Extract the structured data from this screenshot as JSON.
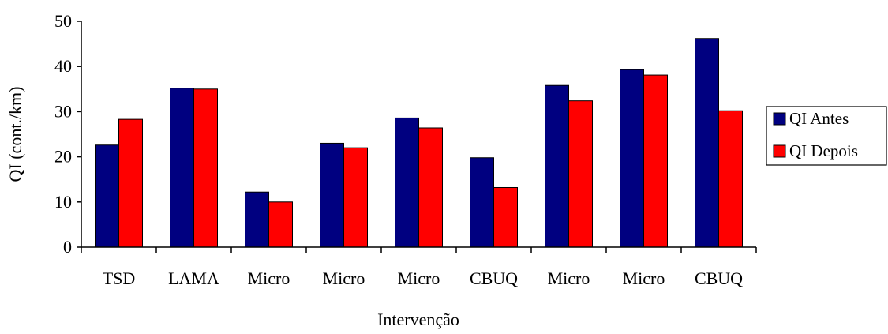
{
  "chart_data": {
    "type": "bar",
    "title": "",
    "xlabel": "Intervenção",
    "ylabel": "QI (cont./km)",
    "categories": [
      "TSD",
      "LAMA",
      "Micro",
      "Micro",
      "Micro",
      "CBUQ",
      "Micro",
      "Micro",
      "CBUQ"
    ],
    "series": [
      {
        "name": "QI Antes",
        "color": "#000080",
        "values": [
          22.6,
          35.2,
          12.2,
          23.0,
          28.6,
          19.8,
          35.8,
          39.3,
          46.2
        ]
      },
      {
        "name": "QI Depois",
        "color": "#ff0000",
        "values": [
          28.3,
          35.0,
          10.0,
          22.0,
          26.4,
          13.2,
          32.4,
          38.1,
          30.2
        ]
      }
    ],
    "ylim": [
      0,
      50
    ],
    "yticks": [
      0,
      10,
      20,
      30,
      40,
      50
    ],
    "grid": false,
    "legend": "right"
  }
}
